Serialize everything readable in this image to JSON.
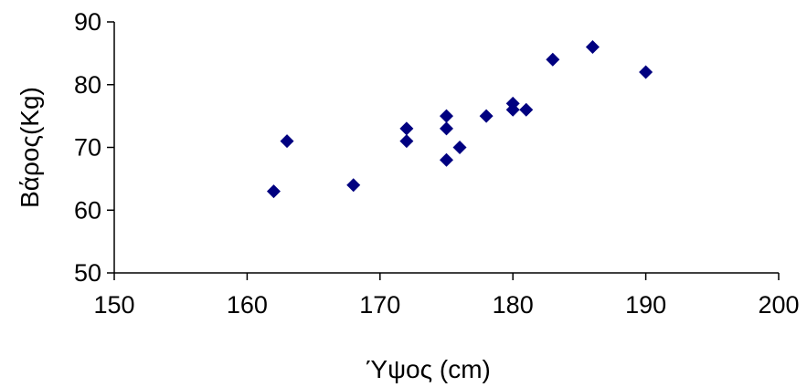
{
  "chart_data": {
    "type": "scatter",
    "title": "",
    "xlabel": "Ύψος (cm)",
    "ylabel": "Βάρος(Kg)",
    "xlim": [
      150,
      200
    ],
    "ylim": [
      50,
      90
    ],
    "xticks": [
      150,
      160,
      170,
      180,
      190,
      200
    ],
    "yticks": [
      50,
      60,
      70,
      80,
      90
    ],
    "xtick_labels": [
      "150",
      "160",
      "170",
      "180",
      "190",
      "200"
    ],
    "ytick_labels": [
      "50",
      "60",
      "70",
      "80",
      "90"
    ],
    "grid": false,
    "legend": "none",
    "marker": "diamond",
    "marker_color": "#000080",
    "series": [
      {
        "points": [
          {
            "x": 162,
            "y": 63
          },
          {
            "x": 163,
            "y": 71
          },
          {
            "x": 168,
            "y": 64
          },
          {
            "x": 172,
            "y": 73
          },
          {
            "x": 172,
            "y": 71
          },
          {
            "x": 175,
            "y": 75
          },
          {
            "x": 175,
            "y": 73
          },
          {
            "x": 175,
            "y": 68
          },
          {
            "x": 176,
            "y": 70
          },
          {
            "x": 178,
            "y": 75
          },
          {
            "x": 180,
            "y": 77
          },
          {
            "x": 180,
            "y": 76
          },
          {
            "x": 181,
            "y": 76
          },
          {
            "x": 183,
            "y": 84
          },
          {
            "x": 186,
            "y": 86
          },
          {
            "x": 190,
            "y": 82
          }
        ]
      }
    ]
  }
}
